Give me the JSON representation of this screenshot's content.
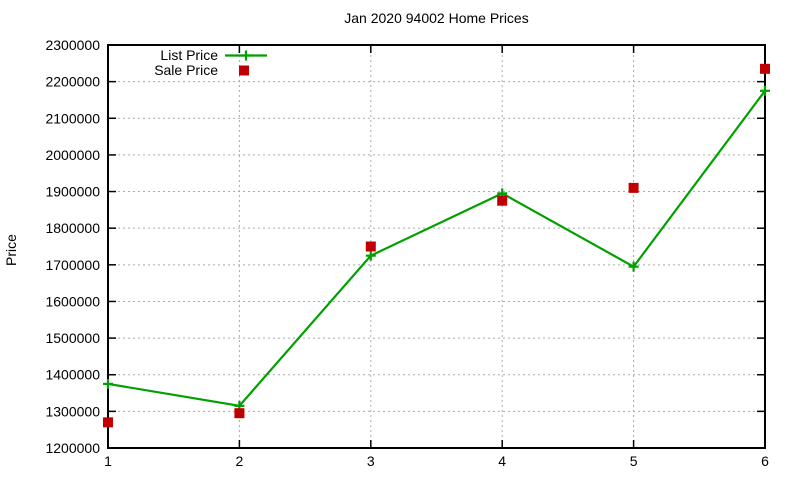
{
  "chart_data": {
    "type": "line",
    "title": "Jan 2020 94002 Home Prices",
    "xlabel": "",
    "ylabel": "Price",
    "x": [
      1,
      2,
      3,
      4,
      5,
      6
    ],
    "series": [
      {
        "name": "List Price",
        "style": "line+markers",
        "marker": "plus",
        "color": "#00a000",
        "values": [
          1375000,
          1315000,
          1725000,
          1895000,
          1695000,
          2175000
        ]
      },
      {
        "name": "Sale Price",
        "style": "scatter",
        "marker": "square",
        "color": "#c00000",
        "values": [
          1270000,
          1295000,
          1750000,
          1875000,
          1910000,
          2235000
        ]
      }
    ],
    "xlim": [
      1,
      6
    ],
    "ylim": [
      1200000,
      2300000
    ],
    "xticks": [
      1,
      2,
      3,
      4,
      5,
      6
    ],
    "yticks": [
      1200000,
      1300000,
      1400000,
      1500000,
      1600000,
      1700000,
      1800000,
      1900000,
      2000000,
      2100000,
      2200000,
      2300000
    ],
    "grid": true,
    "grid_color": "#aaaaaa",
    "border_color": "#000000",
    "background_color": "#ffffff",
    "legend_position": "top-left"
  }
}
